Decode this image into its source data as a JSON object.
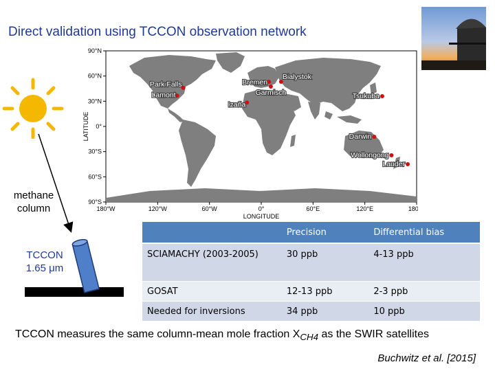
{
  "title": "Direct validation using TCCON observation network",
  "map": {
    "lat_ticks": [
      "90°N",
      "60°N",
      "30°N",
      "0°",
      "30°S",
      "60°S",
      "90°S"
    ],
    "lon_ticks": [
      "180°W",
      "120°W",
      "60°W",
      "0°",
      "60°E",
      "120°E",
      "180°E"
    ],
    "ylabel": "LATITUDE",
    "xlabel": "LONGITUDE",
    "sites": [
      {
        "name": "Bialystok",
        "lat": 53.2,
        "lon": 23.0
      },
      {
        "name": "Bremen",
        "lat": 53.1,
        "lon": 8.8
      },
      {
        "name": "Garmisch",
        "lat": 47.5,
        "lon": 11.1
      },
      {
        "name": "Park Falls",
        "lat": 45.9,
        "lon": -90.3
      },
      {
        "name": "Lamont",
        "lat": 36.6,
        "lon": -97.5
      },
      {
        "name": "Izaña",
        "lat": 28.3,
        "lon": -16.5
      },
      {
        "name": "Tsukuba",
        "lat": 36.0,
        "lon": 140.1
      },
      {
        "name": "Darwin",
        "lat": -12.4,
        "lon": 130.9
      },
      {
        "name": "Wollongong",
        "lat": -34.4,
        "lon": 150.9
      },
      {
        "name": "Lauder",
        "lat": -45.0,
        "lon": 169.7
      }
    ]
  },
  "colors": {
    "title": "#1f3a93",
    "ocean": "#ffffff",
    "land": "#7f7f7f",
    "site": "#d01010",
    "table_header": "#4f81bd",
    "sun": "#f5b800",
    "tube": "#4f7fc8"
  },
  "labels": {
    "methane": "methane column",
    "tccon": "TCCON 1.65 μm"
  },
  "table": {
    "headers": [
      "",
      "Precision",
      "Differential bias"
    ],
    "rows": [
      [
        "SCIAMACHY (2003-2005)",
        "30 ppb",
        "4-13 ppb"
      ],
      [
        "GOSAT",
        "12-13 ppb",
        "2-3 ppb"
      ],
      [
        "Needed for inversions",
        "34 ppb",
        "10 ppb"
      ]
    ]
  },
  "summary": {
    "prefix": "TCCON measures the same column-mean mole fraction X",
    "sub": "CH4",
    "suffix": " as the SWIR satellites"
  },
  "citation": "Buchwitz et al. [2015]"
}
